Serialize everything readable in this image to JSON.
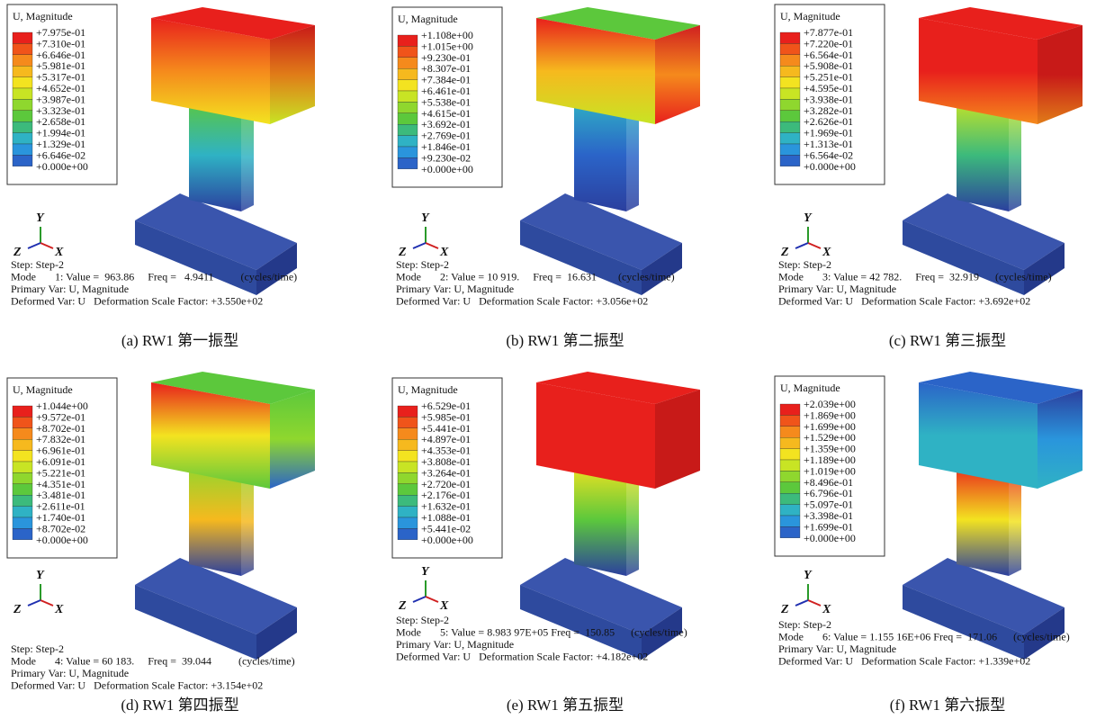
{
  "panels": [
    {
      "legend_title": "U, Magnitude",
      "legend_labels": [
        "+7.975e-01",
        "+7.310e-01",
        "+6.646e-01",
        "+5.981e-01",
        "+5.317e-01",
        "+4.652e-01",
        "+3.987e-01",
        "+3.323e-01",
        "+2.658e-01",
        "+1.994e-01",
        "+1.329e-01",
        "+6.646e-02",
        "+0.000e+00"
      ],
      "triad": [
        "Y",
        "Z",
        "X"
      ],
      "info": [
        "Step: Step-2",
        "Mode       1: Value =  963.86     Freq =   4.9411          (cycles/time)",
        "Primary Var: U, Magnitude",
        "Deformed Var: U   Deformation Scale Factor: +3.550e+02"
      ],
      "caption": "(a) RW1 第一振型"
    },
    {
      "legend_title": "U, Magnitude",
      "legend_labels": [
        "+1.108e+00",
        "+1.015e+00",
        "+9.230e-01",
        "+8.307e-01",
        "+7.384e-01",
        "+6.461e-01",
        "+5.538e-01",
        "+4.615e-01",
        "+3.692e-01",
        "+2.769e-01",
        "+1.846e-01",
        "+9.230e-02",
        "+0.000e+00"
      ],
      "triad": [
        "Y",
        "Z",
        "X"
      ],
      "info": [
        "Step: Step-2",
        "Mode       2: Value = 10 919.     Freq =  16.631        (cycles/time)",
        "Primary Var: U, Magnitude",
        "Deformed Var: U   Deformation Scale Factor: +3.056e+02"
      ],
      "caption": "(b) RW1 第二振型"
    },
    {
      "legend_title": "U, Magnitude",
      "legend_labels": [
        "+7.877e-01",
        "+7.220e-01",
        "+6.564e-01",
        "+5.908e-01",
        "+5.251e-01",
        "+4.595e-01",
        "+3.938e-01",
        "+3.282e-01",
        "+2.626e-01",
        "+1.969e-01",
        "+1.313e-01",
        "+6.564e-02",
        "+0.000e+00"
      ],
      "triad": [
        "Y",
        "Z",
        "X"
      ],
      "info": [
        "Step: Step-2",
        "Mode       3: Value = 42 782.     Freq =  32.919      (cycles/time)",
        "Primary Var: U, Magnitude",
        "Deformed Var: U   Deformation Scale Factor: +3.692e+02"
      ],
      "caption": "(c) RW1 第三振型"
    },
    {
      "legend_title": "U, Magnitude",
      "legend_labels": [
        "+1.044e+00",
        "+9.572e-01",
        "+8.702e-01",
        "+7.832e-01",
        "+6.961e-01",
        "+6.091e-01",
        "+5.221e-01",
        "+4.351e-01",
        "+3.481e-01",
        "+2.611e-01",
        "+1.740e-01",
        "+8.702e-02",
        "+0.000e+00"
      ],
      "triad": [
        "Y",
        "Z",
        "X"
      ],
      "info": [
        "Step: Step-2",
        "Mode       4: Value = 60 183.     Freq =  39.044          (cycles/time)",
        "Primary Var: U, Magnitude",
        "Deformed Var: U   Deformation Scale Factor: +3.154e+02"
      ],
      "caption": "(d) RW1 第四振型"
    },
    {
      "legend_title": "U, Magnitude",
      "legend_labels": [
        "+6.529e-01",
        "+5.985e-01",
        "+5.441e-01",
        "+4.897e-01",
        "+4.353e-01",
        "+3.808e-01",
        "+3.264e-01",
        "+2.720e-01",
        "+2.176e-01",
        "+1.632e-01",
        "+1.088e-01",
        "+5.441e-02",
        "+0.000e+00"
      ],
      "triad": [
        "Y",
        "Z",
        "X"
      ],
      "info": [
        "Step: Step-2",
        "Mode       5: Value = 8.983 97E+05 Freq =  150.85      (cycles/time)",
        "Primary Var: U, Magnitude",
        "Deformed Var: U   Deformation Scale Factor: +4.182e+02"
      ],
      "caption": "(e) RW1 第五振型"
    },
    {
      "legend_title": "U, Magnitude",
      "legend_labels": [
        "+2.039e+00",
        "+1.869e+00",
        "+1.699e+00",
        "+1.529e+00",
        "+1.359e+00",
        "+1.189e+00",
        "+1.019e+00",
        "+8.496e-01",
        "+6.796e-01",
        "+5.097e-01",
        "+3.398e-01",
        "+1.699e-01",
        "+0.000e+00"
      ],
      "triad": [
        "Y",
        "Z",
        "X"
      ],
      "info": [
        "Step: Step-2",
        "Mode       6: Value = 1.155 16E+06 Freq =  171.06      (cycles/time)",
        "Primary Var: U, Magnitude",
        "Deformed Var: U   Deformation Scale Factor: +1.339e+02"
      ],
      "caption": "(f) RW1 第六振型"
    }
  ]
}
